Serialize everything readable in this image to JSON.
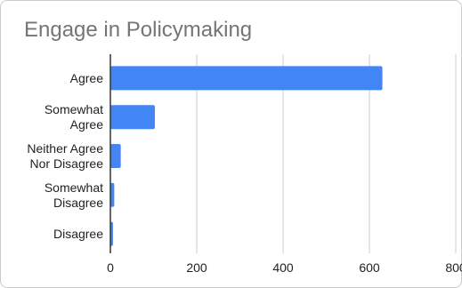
{
  "chart_data": {
    "type": "bar",
    "orientation": "horizontal",
    "title": "Engage in Policymaking",
    "xlabel": "",
    "ylabel": "",
    "categories": [
      [
        "Agree"
      ],
      [
        "Somewhat",
        "Agree"
      ],
      [
        "Neither Agree",
        "Nor Disagree"
      ],
      [
        "Somewhat",
        "Disagree"
      ],
      [
        "Disagree"
      ]
    ],
    "values": [
      630,
      103,
      24,
      9,
      6
    ],
    "xlim": [
      0,
      800
    ],
    "xticks": [
      "0",
      "200",
      "400",
      "600",
      "800"
    ],
    "grid": true,
    "legend": "none",
    "bar_color": "#4285f4",
    "grid_color": "#cccccc",
    "axis_color": "#333333"
  }
}
